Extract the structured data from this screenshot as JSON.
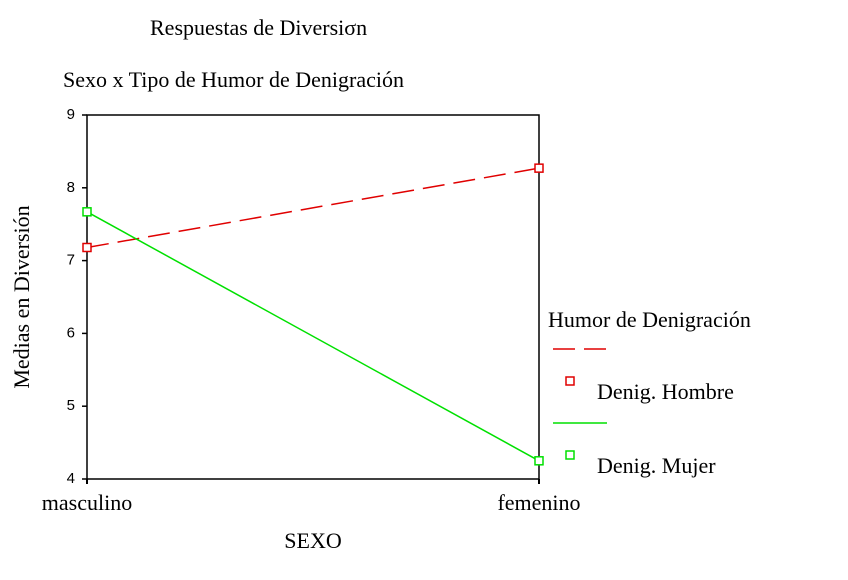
{
  "chart_data": {
    "type": "line",
    "title": "Respuestas de Diversiσn",
    "subtitle": "Sexo x Tipo de Humor de Denigración",
    "x_label": "SEXO",
    "y_label": "Medias en Diversión",
    "categories": [
      "masculino",
      "femenino"
    ],
    "legend_title": "Humor de Denigración",
    "legend": "right",
    "series": [
      {
        "name": "Denig. Hombre",
        "color": "#e00000",
        "line_style": "dashed",
        "values": [
          7.18,
          8.27
        ]
      },
      {
        "name": "Denig. Mujer",
        "color": "#00e000",
        "line_style": "solid",
        "values": [
          7.67,
          4.25
        ]
      }
    ],
    "ylim": [
      4,
      9
    ],
    "yticks": [
      4,
      5,
      6,
      7,
      8,
      9
    ]
  }
}
